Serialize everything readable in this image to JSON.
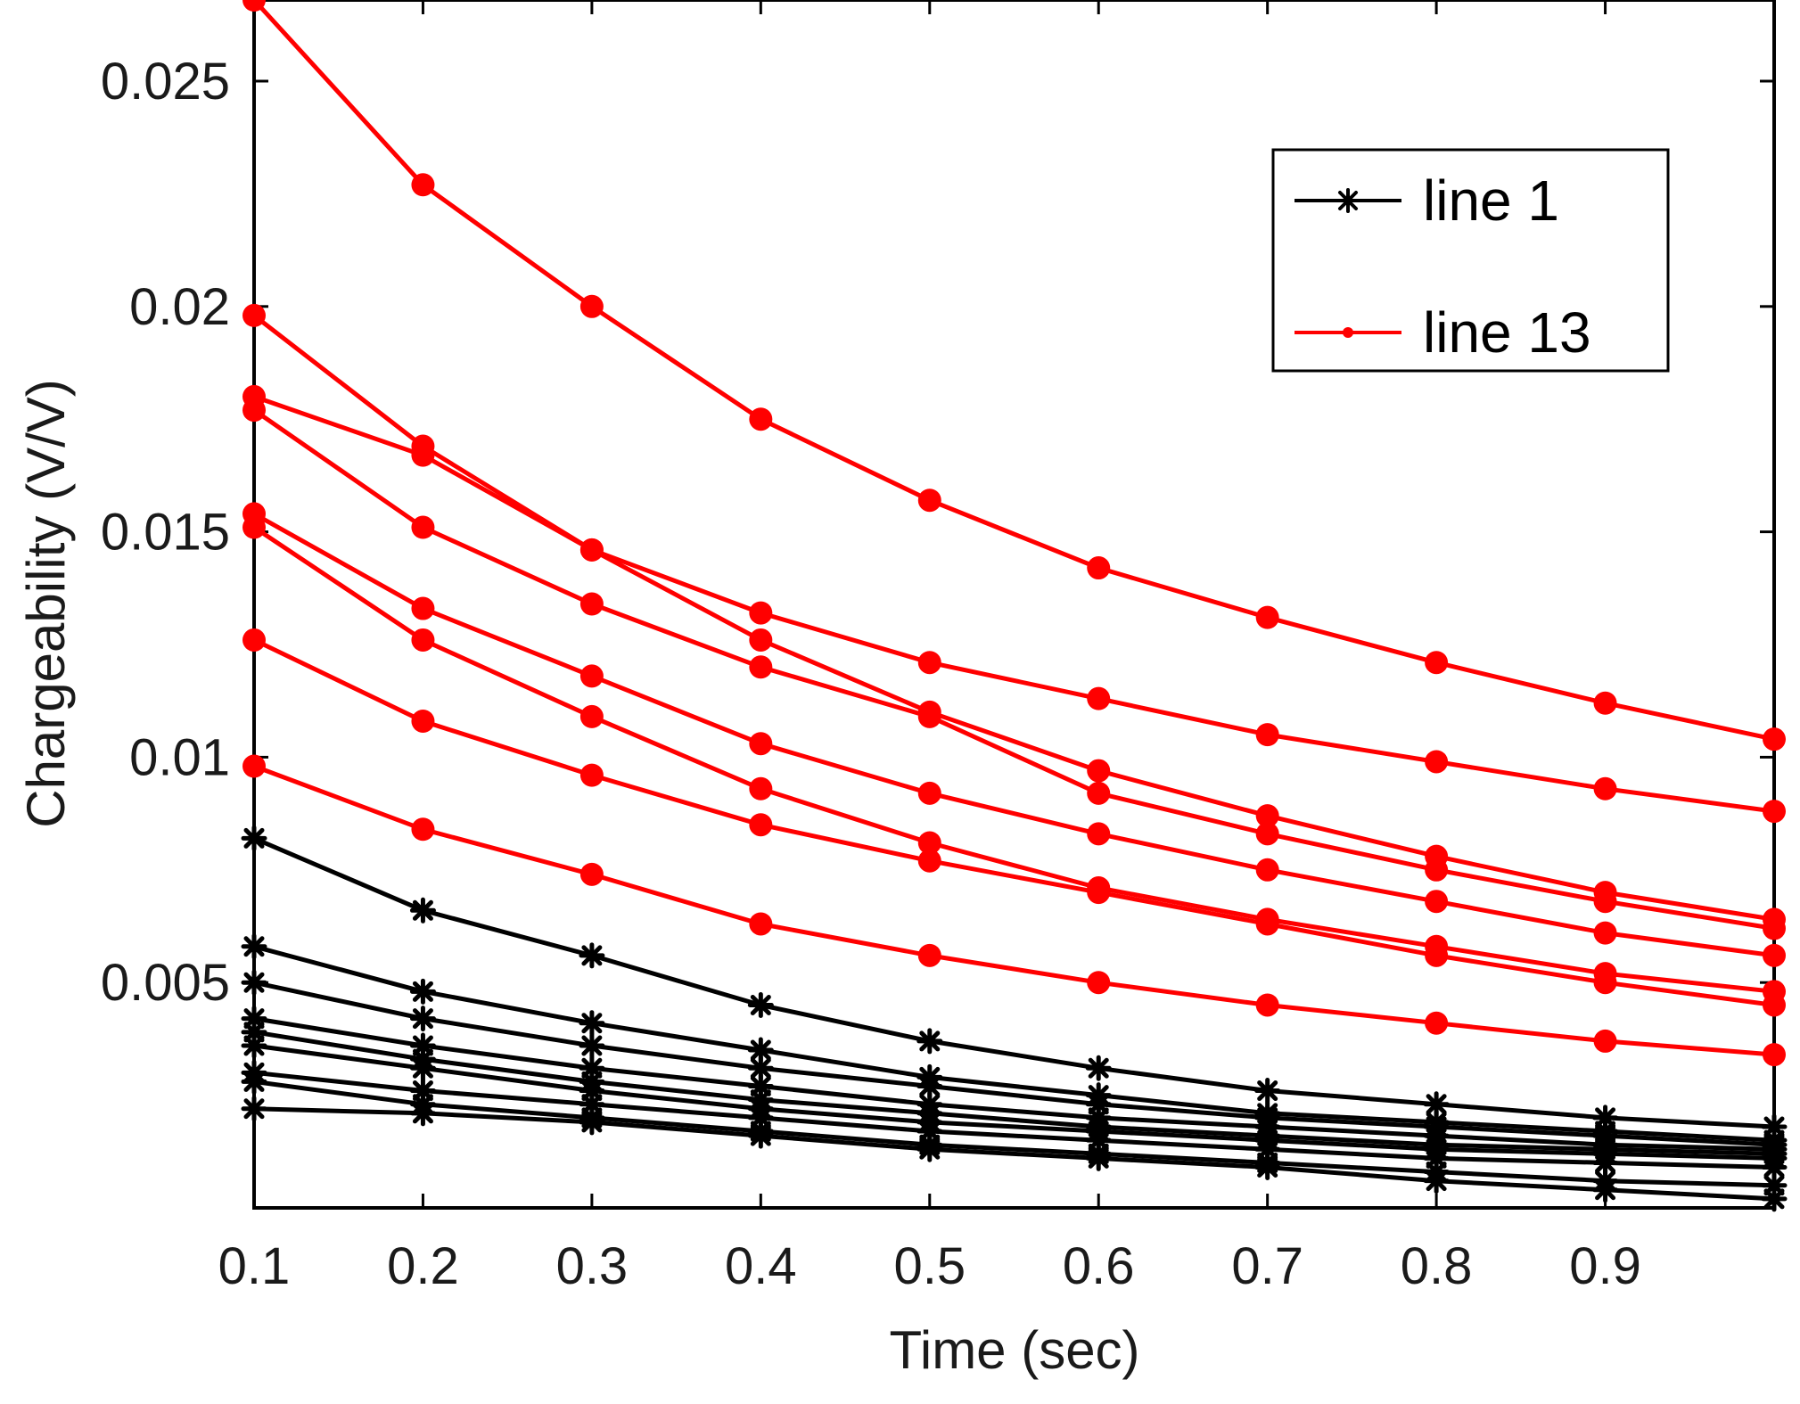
{
  "chart_data": {
    "type": "line",
    "title": "",
    "xlabel": "Time (sec)",
    "ylabel": "Chargeability (V/V)",
    "xlim": [
      0.1,
      1.0
    ],
    "ylim": [
      0.0,
      0.0268
    ],
    "xticks": [
      0.1,
      0.2,
      0.3,
      0.4,
      0.5,
      0.6,
      0.7,
      0.8,
      0.9
    ],
    "xtick_labels": [
      "0.1",
      "0.2",
      "0.3",
      "0.4",
      "0.5",
      "0.6",
      "0.7",
      "0.8",
      "0.9"
    ],
    "yticks": [
      0.005,
      0.01,
      0.015,
      0.02,
      0.025
    ],
    "ytick_labels": [
      "0.005",
      "0.01",
      "0.015",
      "0.02",
      "0.025"
    ],
    "grid": false,
    "legend_position": "top-right",
    "legend": [
      {
        "label": "line 1",
        "color": "#000000",
        "marker": "asterisk"
      },
      {
        "label": "line 13",
        "color": "#ff0000",
        "marker": "dot"
      }
    ],
    "x": [
      0.1,
      0.2,
      0.3,
      0.4,
      0.5,
      0.6,
      0.7,
      0.8,
      0.9,
      1.0
    ],
    "series": [
      {
        "name": "line 13",
        "color": "#ff0000",
        "marker": "dot",
        "values": [
          0.0268,
          0.0227,
          0.02,
          0.0175,
          0.0157,
          0.0142,
          0.0131,
          0.0121,
          0.0112,
          0.0104
        ]
      },
      {
        "name": "line 13",
        "color": "#ff0000",
        "marker": "dot",
        "values": [
          0.0198,
          0.0169,
          0.0146,
          0.0126,
          0.011,
          0.0097,
          0.0087,
          0.0078,
          0.007,
          0.0064
        ]
      },
      {
        "name": "line 13",
        "color": "#ff0000",
        "marker": "dot",
        "values": [
          0.018,
          0.0167,
          0.0146,
          0.0132,
          0.0121,
          0.0113,
          0.0105,
          0.0099,
          0.0093,
          0.0088
        ]
      },
      {
        "name": "line 13",
        "color": "#ff0000",
        "marker": "dot",
        "values": [
          0.0177,
          0.0151,
          0.0134,
          0.012,
          0.0109,
          0.0092,
          0.0083,
          0.0075,
          0.0068,
          0.0062
        ]
      },
      {
        "name": "line 13",
        "color": "#ff0000",
        "marker": "dot",
        "values": [
          0.0154,
          0.0133,
          0.0118,
          0.0103,
          0.0092,
          0.0083,
          0.0075,
          0.0068,
          0.0061,
          0.0056
        ]
      },
      {
        "name": "line 13",
        "color": "#ff0000",
        "marker": "dot",
        "values": [
          0.0151,
          0.0126,
          0.0109,
          0.0093,
          0.0081,
          0.0071,
          0.0064,
          0.0058,
          0.0052,
          0.0048
        ]
      },
      {
        "name": "line 13",
        "color": "#ff0000",
        "marker": "dot",
        "values": [
          0.0126,
          0.0108,
          0.0096,
          0.0085,
          0.0077,
          0.007,
          0.0063,
          0.0056,
          0.005,
          0.0045
        ]
      },
      {
        "name": "line 13",
        "color": "#ff0000",
        "marker": "dot",
        "values": [
          0.0098,
          0.0084,
          0.0074,
          0.0063,
          0.0056,
          0.005,
          0.0045,
          0.0041,
          0.0037,
          0.0034
        ]
      },
      {
        "name": "line 1",
        "color": "#000000",
        "marker": "asterisk",
        "values": [
          0.0082,
          0.0066,
          0.0056,
          0.0045,
          0.0037,
          0.0031,
          0.0026,
          0.0023,
          0.002,
          0.0018
        ]
      },
      {
        "name": "line 1",
        "color": "#000000",
        "marker": "asterisk",
        "values": [
          0.0058,
          0.0048,
          0.0041,
          0.0035,
          0.0029,
          0.0025,
          0.0021,
          0.0019,
          0.0017,
          0.0015
        ]
      },
      {
        "name": "line 1",
        "color": "#000000",
        "marker": "asterisk",
        "values": [
          0.005,
          0.0042,
          0.0036,
          0.0031,
          0.0027,
          0.0023,
          0.002,
          0.0018,
          0.0016,
          0.0014
        ]
      },
      {
        "name": "line 1",
        "color": "#000000",
        "marker": "asterisk",
        "values": [
          0.0042,
          0.0036,
          0.0031,
          0.0027,
          0.0023,
          0.002,
          0.0018,
          0.0016,
          0.0014,
          0.0013
        ]
      },
      {
        "name": "line 1",
        "color": "#000000",
        "marker": "asterisk",
        "values": [
          0.0039,
          0.0033,
          0.0028,
          0.0024,
          0.0021,
          0.0018,
          0.0016,
          0.0014,
          0.0013,
          0.0012
        ]
      },
      {
        "name": "line 1",
        "color": "#000000",
        "marker": "asterisk",
        "values": [
          0.0036,
          0.0031,
          0.0026,
          0.0022,
          0.0019,
          0.0017,
          0.0015,
          0.0013,
          0.0012,
          0.0011
        ]
      },
      {
        "name": "line 1",
        "color": "#000000",
        "marker": "asterisk",
        "values": [
          0.003,
          0.0026,
          0.0023,
          0.002,
          0.0017,
          0.0015,
          0.0013,
          0.0011,
          0.001,
          0.0009
        ]
      },
      {
        "name": "line 1",
        "color": "#000000",
        "marker": "asterisk",
        "values": [
          0.0028,
          0.0023,
          0.002,
          0.0017,
          0.0014,
          0.0012,
          0.001,
          0.0008,
          0.0006,
          0.0005
        ]
      },
      {
        "name": "line 1",
        "color": "#000000",
        "marker": "asterisk",
        "values": [
          0.0022,
          0.0021,
          0.0019,
          0.0016,
          0.0013,
          0.0011,
          0.0009,
          0.0006,
          0.0004,
          0.0002
        ]
      }
    ]
  }
}
